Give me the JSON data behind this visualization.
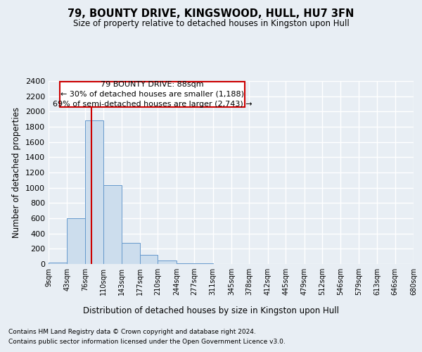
{
  "title": "79, BOUNTY DRIVE, KINGSWOOD, HULL, HU7 3FN",
  "subtitle": "Size of property relative to detached houses in Kingston upon Hull",
  "xlabel": "Distribution of detached houses by size in Kingston upon Hull",
  "ylabel": "Number of detached properties",
  "bar_color": "#ccdded",
  "bar_edge_color": "#6699cc",
  "bin_edges": [
    9,
    43,
    76,
    110,
    143,
    177,
    210,
    244,
    277,
    311,
    345,
    378,
    412,
    445,
    479,
    512,
    546,
    579,
    613,
    646,
    680
  ],
  "bar_heights": [
    20,
    600,
    1880,
    1030,
    280,
    120,
    50,
    5,
    5,
    0,
    0,
    0,
    0,
    0,
    0,
    0,
    0,
    0,
    0,
    0
  ],
  "property_size": 88,
  "red_line_color": "#cc0000",
  "annotation_text": "79 BOUNTY DRIVE: 88sqm\n← 30% of detached houses are smaller (1,188)\n69% of semi-detached houses are larger (2,743) →",
  "annotation_box_color": "#ffffff",
  "annotation_box_edge": "#cc0000",
  "ylim": [
    0,
    2400
  ],
  "yticks": [
    0,
    200,
    400,
    600,
    800,
    1000,
    1200,
    1400,
    1600,
    1800,
    2000,
    2200,
    2400
  ],
  "footer_line1": "Contains HM Land Registry data © Crown copyright and database right 2024.",
  "footer_line2": "Contains public sector information licensed under the Open Government Licence v3.0.",
  "background_color": "#e8eef4",
  "grid_color": "#ffffff"
}
